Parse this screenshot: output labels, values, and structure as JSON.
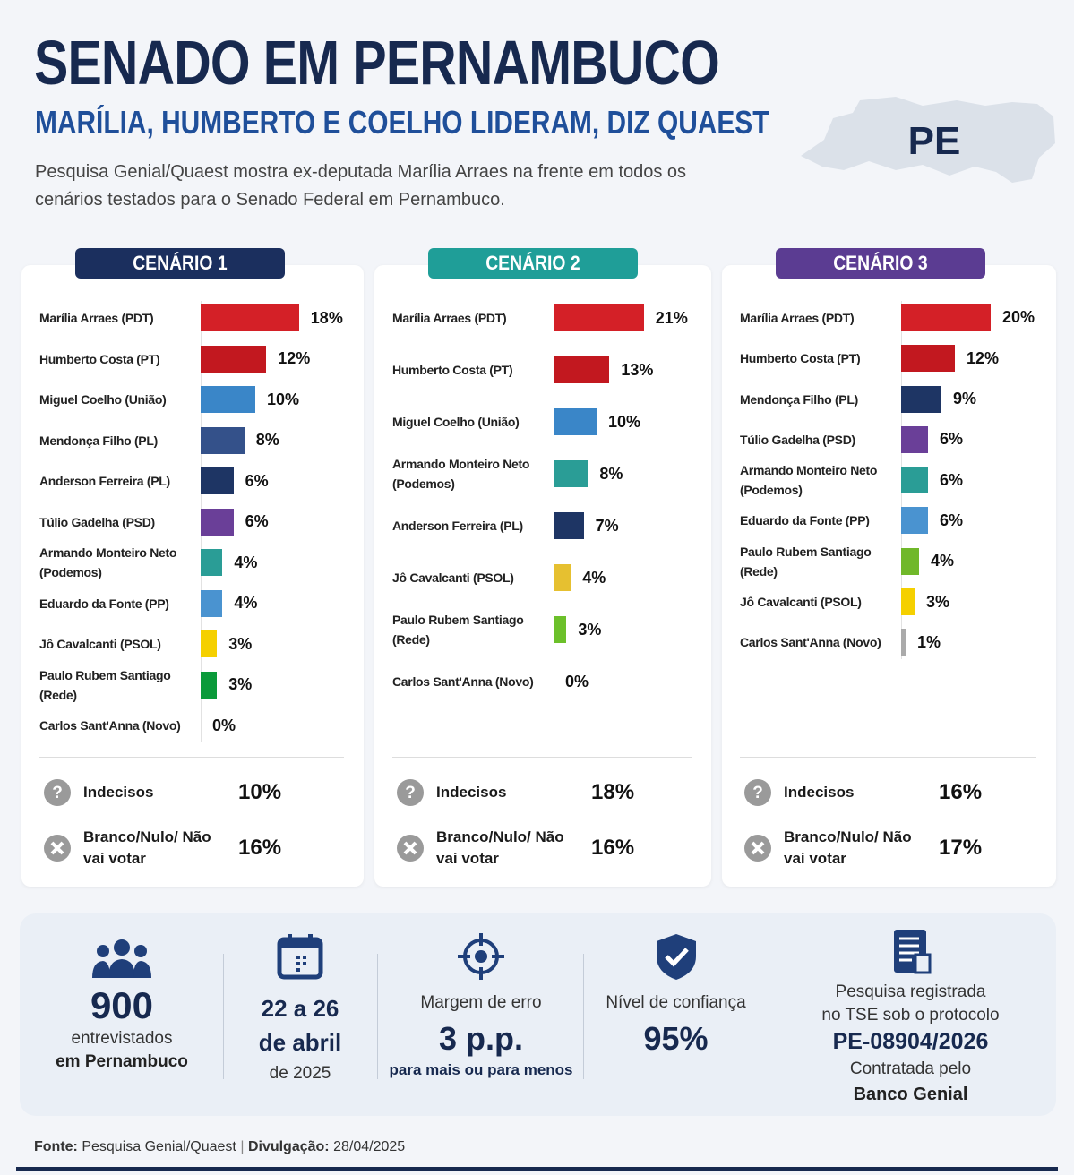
{
  "header": {
    "title": "SENADO EM PERNAMBUCO",
    "subtitle": "MARÍLIA, HUMBERTO E COELHO LIDERAM, DIZ QUAEST",
    "description": "Pesquisa Genial/Quaest mostra ex-deputada Marília Arraes na frente em todos os cenários testados para o Senado Federal em Pernambuco.",
    "map_label": "PE"
  },
  "chart_data": [
    {
      "type": "bar",
      "title": "CENÁRIO 1",
      "title_color": "#1b2f5e",
      "categories": [
        "Marília Arraes (PDT)",
        "Humberto Costa (PT)",
        "Miguel Coelho (União)",
        "Mendonça Filho (PL)",
        "Anderson Ferreira (PL)",
        "Túlio Gadelha (PSD)",
        "Armando Monteiro Neto (Podemos)",
        "Eduardo da Fonte (PP)",
        "Jô Cavalcanti (PSOL)",
        "Paulo Rubem Santiago (Rede)",
        "Carlos Sant'Anna (Novo)"
      ],
      "values": [
        18,
        12,
        10,
        8,
        6,
        6,
        4,
        4,
        3,
        3,
        0
      ],
      "value_labels": [
        "18%",
        "12%",
        "10%",
        "8%",
        "6%",
        "6%",
        "4%",
        "4%",
        "3%",
        "3%",
        "0%"
      ],
      "colors": [
        "#d42027",
        "#c2181f",
        "#3a86c8",
        "#34518a",
        "#1e3564",
        "#6a3f98",
        "#2a9d96",
        "#4a93d0",
        "#f5d000",
        "#0a9a3a",
        "#aaaaaa"
      ],
      "others": [
        {
          "label": "Indecisos",
          "value": "10%"
        },
        {
          "label": "Branco/Nulo/ Não vai votar",
          "value": "16%"
        }
      ]
    },
    {
      "type": "bar",
      "title": "CENÁRIO 2",
      "title_color": "#1f9e98",
      "categories": [
        "Marília Arraes (PDT)",
        "Humberto Costa (PT)",
        "Miguel Coelho (União)",
        "Armando Monteiro Neto (Podemos)",
        "Anderson Ferreira (PL)",
        "Jô Cavalcanti (PSOL)",
        "Paulo Rubem Santiago (Rede)",
        "Carlos Sant'Anna (Novo)"
      ],
      "values": [
        21,
        13,
        10,
        8,
        7,
        4,
        3,
        0
      ],
      "value_labels": [
        "21%",
        "13%",
        "10%",
        "8%",
        "7%",
        "4%",
        "3%",
        "0%"
      ],
      "colors": [
        "#d42027",
        "#c2181f",
        "#3a86c8",
        "#2a9d96",
        "#1e3564",
        "#e6c030",
        "#6cc02a",
        "#aaaaaa"
      ],
      "others": [
        {
          "label": "Indecisos",
          "value": "18%"
        },
        {
          "label": "Branco/Nulo/ Não vai votar",
          "value": "16%"
        }
      ]
    },
    {
      "type": "bar",
      "title": "CENÁRIO 3",
      "title_color": "#5b3c92",
      "categories": [
        "Marília Arraes (PDT)",
        "Humberto Costa (PT)",
        "Mendonça Filho (PL)",
        "Túlio Gadelha (PSD)",
        "Armando Monteiro Neto (Podemos)",
        "Eduardo da Fonte (PP)",
        "Paulo Rubem Santiago (Rede)",
        "Jô Cavalcanti (PSOL)",
        "Carlos Sant'Anna (Novo)"
      ],
      "values": [
        20,
        12,
        9,
        6,
        6,
        6,
        4,
        3,
        1
      ],
      "value_labels": [
        "20%",
        "12%",
        "9%",
        "6%",
        "6%",
        "6%",
        "4%",
        "3%",
        "1%"
      ],
      "colors": [
        "#d42027",
        "#c2181f",
        "#1e3564",
        "#6a3f98",
        "#2a9d96",
        "#4a93d0",
        "#70b82a",
        "#f5d000",
        "#aaaaaa"
      ],
      "others": [
        {
          "label": "Indecisos",
          "value": "16%"
        },
        {
          "label": "Branco/Nulo/ Não vai votar",
          "value": "17%"
        }
      ]
    }
  ],
  "stats": {
    "sample": {
      "number": "900",
      "line1": "entrevistados",
      "line2": "em Pernambuco"
    },
    "dates": {
      "line1": "22 a 26",
      "line2": "de abril",
      "line3": "de 2025"
    },
    "margin": {
      "label": "Margem de erro",
      "value": "3 p.p.",
      "note": "para mais ou para menos"
    },
    "confidence": {
      "label": "Nível de confiança",
      "value": "95%"
    },
    "registry": {
      "line1": "Pesquisa registrada",
      "line2": "no TSE sob o protocolo",
      "protocol": "PE-08904/2026",
      "line3": "Contratada pelo",
      "sponsor": "Banco Genial"
    }
  },
  "footer": {
    "source_label": "Fonte:",
    "source": "Pesquisa Genial/Quaest",
    "separator": "|",
    "date_label": "Divulgação:",
    "date": "28/04/2025"
  }
}
